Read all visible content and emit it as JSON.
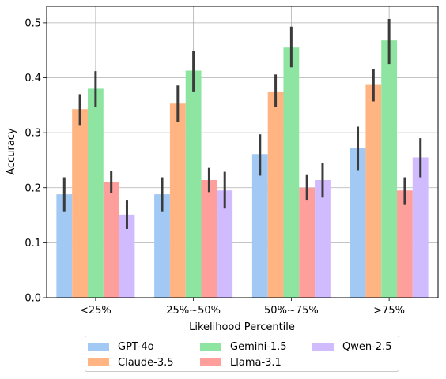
{
  "chart_data": {
    "type": "bar",
    "xlabel": "Likelihood Percentile",
    "ylabel": "Accuracy",
    "categories": [
      "<25%",
      "25%~50%",
      "50%~75%",
      ">75%"
    ],
    "ylim": [
      0,
      0.53
    ],
    "yticks": [
      0.0,
      0.1,
      0.2,
      0.3,
      0.4,
      0.5
    ],
    "ytick_labels": [
      "0.0",
      "0.1",
      "0.2",
      "0.3",
      "0.4",
      "0.5"
    ],
    "grid": true,
    "legend_position": "bottom-center",
    "series": [
      {
        "name": "GPT-4o",
        "color": "#a1c9f4",
        "values": [
          0.188,
          0.188,
          0.261,
          0.272
        ],
        "error_low": [
          0.157,
          0.157,
          0.222,
          0.232
        ],
        "error_high": [
          0.219,
          0.219,
          0.297,
          0.311
        ]
      },
      {
        "name": "Claude-3.5",
        "color": "#ffb482",
        "values": [
          0.343,
          0.353,
          0.375,
          0.387
        ],
        "error_low": [
          0.314,
          0.32,
          0.347,
          0.357
        ],
        "error_high": [
          0.37,
          0.386,
          0.406,
          0.416
        ]
      },
      {
        "name": "Gemini-1.5",
        "color": "#8de5a1",
        "values": [
          0.38,
          0.413,
          0.455,
          0.468
        ],
        "error_low": [
          0.347,
          0.375,
          0.419,
          0.425
        ],
        "error_high": [
          0.412,
          0.449,
          0.493,
          0.507
        ]
      },
      {
        "name": "Llama-3.1",
        "color": "#ff9f9b",
        "values": [
          0.21,
          0.214,
          0.2,
          0.195
        ],
        "error_low": [
          0.19,
          0.192,
          0.178,
          0.17
        ],
        "error_high": [
          0.23,
          0.236,
          0.223,
          0.219
        ]
      },
      {
        "name": "Qwen-2.5",
        "color": "#d0bbff",
        "values": [
          0.151,
          0.195,
          0.214,
          0.255
        ],
        "error_low": [
          0.125,
          0.162,
          0.182,
          0.219
        ],
        "error_high": [
          0.178,
          0.229,
          0.245,
          0.29
        ]
      }
    ]
  }
}
